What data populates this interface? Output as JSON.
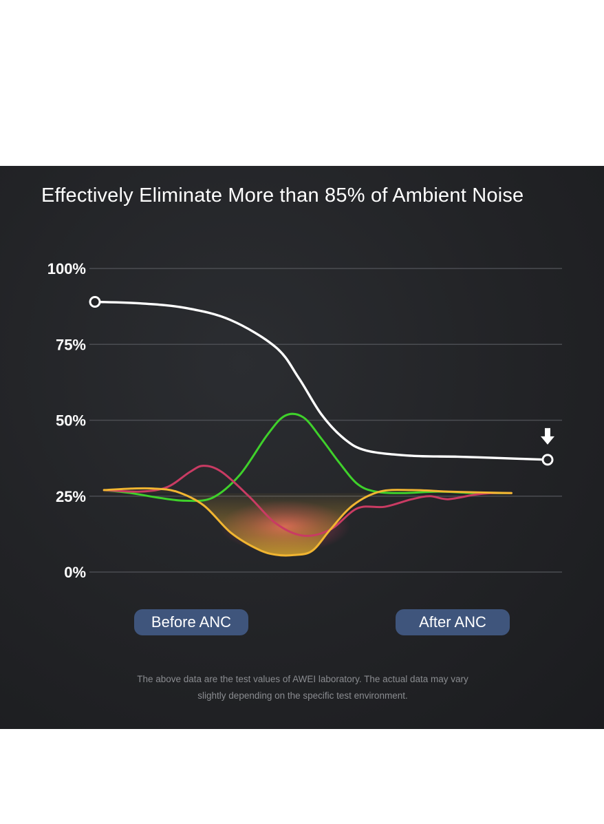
{
  "title": "Effectively Eliminate More than 85% of Ambient Noise",
  "colors": {
    "background": "#222326",
    "white_curve": "#ffffff",
    "green_curve": "#3fd12b",
    "red_curve": "#c93b63",
    "yellow_curve": "#f1b531",
    "gridline": "#4b4d52",
    "pill": "#3f557c"
  },
  "chart_data": {
    "type": "line",
    "title": "Effectively Eliminate More than 85% of Ambient Noise",
    "xlabel": "",
    "ylabel": "",
    "ylim": [
      0,
      100
    ],
    "yticks": [
      "0%",
      "25%",
      "50%",
      "75%",
      "100%"
    ],
    "ytick_values": [
      0,
      25,
      50,
      75,
      100
    ],
    "grid": true,
    "categories": [
      "Before ANC",
      "After ANC"
    ],
    "series": [
      {
        "name": "Ambient noise level",
        "color": "#ffffff",
        "start_marker": true,
        "end_marker": true,
        "end_arrow": true,
        "x": [
          0,
          10,
          20,
          30,
          40,
          45,
          50,
          55,
          60,
          70,
          80,
          90,
          100
        ],
        "y": [
          89,
          88.5,
          87,
          83,
          74,
          64,
          52,
          44,
          40,
          38.3,
          38,
          37.5,
          37
        ]
      },
      {
        "name": "Green waveform",
        "color": "#3fd12b",
        "x": [
          2,
          8,
          14,
          20,
          26,
          32,
          38,
          42,
          46,
          50,
          54,
          58,
          62,
          68,
          76,
          84,
          92
        ],
        "y": [
          27,
          26,
          24.5,
          23.5,
          24.5,
          32,
          45,
          51.5,
          51,
          44,
          36,
          29,
          26.5,
          26,
          26.5,
          26,
          26
        ]
      },
      {
        "name": "Red waveform",
        "color": "#c93b63",
        "x": [
          2,
          10,
          16,
          21,
          24,
          28,
          34,
          40,
          46,
          52,
          58,
          64,
          70,
          74,
          78,
          84,
          88,
          92
        ],
        "y": [
          27,
          26.5,
          28,
          33,
          35,
          33,
          25,
          16,
          12,
          14,
          21,
          21.5,
          24,
          25,
          24,
          25.5,
          26,
          26
        ]
      },
      {
        "name": "Yellow waveform",
        "color": "#f1b531",
        "x": [
          2,
          8,
          13,
          18,
          24,
          30,
          36,
          40,
          44,
          48,
          52,
          57,
          63,
          70,
          78,
          86,
          92
        ],
        "y": [
          27,
          27.5,
          27.5,
          26.5,
          22,
          13,
          7.5,
          5.7,
          5.6,
          7,
          14,
          22,
          26.5,
          27,
          26.5,
          26.2,
          26
        ]
      }
    ]
  },
  "buttons": {
    "before_label": "Before ANC",
    "after_label": "After ANC"
  },
  "footnote": {
    "line1": "The above data are the test values of AWEI laboratory. The actual data may vary",
    "line2": "slightly depending on the specific test environment."
  }
}
